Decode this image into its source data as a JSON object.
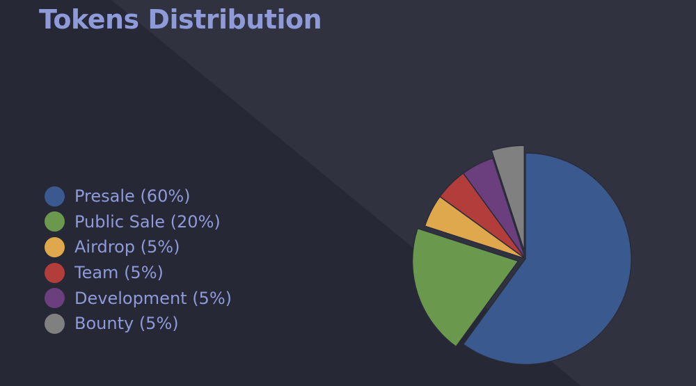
{
  "title": "Tokens Distribution",
  "chart_data": {
    "type": "pie",
    "title": "Tokens Distribution",
    "slices": [
      {
        "label": "Presale (60%)",
        "value": 60,
        "color": "#3a5a8f",
        "exploded": false
      },
      {
        "label": "Public Sale (20%)",
        "value": 20,
        "color": "#6a994e",
        "exploded": true
      },
      {
        "label": "Airdrop (5%)",
        "value": 5,
        "color": "#e0a84c",
        "exploded": false
      },
      {
        "label": "Team (5%)",
        "value": 5,
        "color": "#b33d3b",
        "exploded": false
      },
      {
        "label": "Development (5%)",
        "value": 5,
        "color": "#6b3f7d",
        "exploded": false
      },
      {
        "label": "Bounty (5%)",
        "value": 5,
        "color": "#808080",
        "exploded": true
      }
    ],
    "legend_position": "left"
  }
}
